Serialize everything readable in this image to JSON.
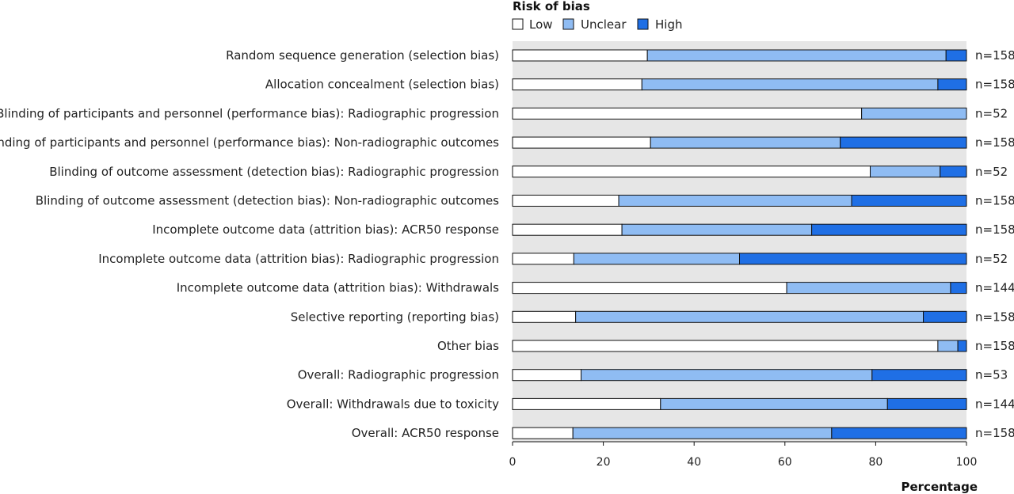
{
  "chart_data": {
    "type": "bar",
    "orientation": "horizontal",
    "stacked": true,
    "legend_title": "Risk of bias",
    "legend_position": "top",
    "xlabel": "Percentage",
    "xlim": [
      0,
      100
    ],
    "xticks": [
      0,
      20,
      40,
      60,
      80,
      100
    ],
    "categories": [
      "Random sequence generation (selection bias)",
      "Allocation concealment (selection bias)",
      "Blinding of participants and personnel (performance bias): Radiographic progression",
      "Blinding of participants and personnel (performance bias): Non-radiographic outcomes",
      "Blinding of outcome assessment (detection bias): Radiographic progression",
      "Blinding of outcome assessment (detection bias): Non-radiographic outcomes",
      "Incomplete outcome data (attrition bias): ACR50 response",
      "Incomplete outcome data (attrition bias): Radiographic progression",
      "Incomplete outcome data (attrition bias): Withdrawals",
      "Selective reporting (reporting bias)",
      "Other bias",
      "Overall: Radiographic progression",
      "Overall: Withdrawals due to toxicity",
      "Overall: ACR50 response"
    ],
    "n_labels": [
      "n=158",
      "n=158",
      "n=52",
      "n=158",
      "n=52",
      "n=158",
      "n=158",
      "n=52",
      "n=144",
      "n=158",
      "n=158",
      "n=53",
      "n=144",
      "n=158"
    ],
    "series": [
      {
        "name": "Low",
        "color": "#ffffff",
        "values": [
          29.7,
          28.5,
          76.9,
          30.4,
          78.8,
          23.4,
          24.1,
          13.5,
          60.4,
          13.9,
          93.7,
          15.1,
          32.6,
          13.3
        ]
      },
      {
        "name": "Unclear",
        "color": "#8fbcf3",
        "values": [
          65.8,
          65.2,
          23.1,
          41.8,
          15.4,
          51.3,
          41.8,
          36.5,
          36.1,
          76.6,
          4.4,
          64.1,
          50.0,
          57.0
        ]
      },
      {
        "name": "High",
        "color": "#1f6fe5",
        "values": [
          4.5,
          6.3,
          0.0,
          27.8,
          5.8,
          25.3,
          34.1,
          50.0,
          3.5,
          9.5,
          1.9,
          20.8,
          17.4,
          29.7
        ]
      }
    ],
    "grid": false,
    "background": "#e6e6e6"
  }
}
